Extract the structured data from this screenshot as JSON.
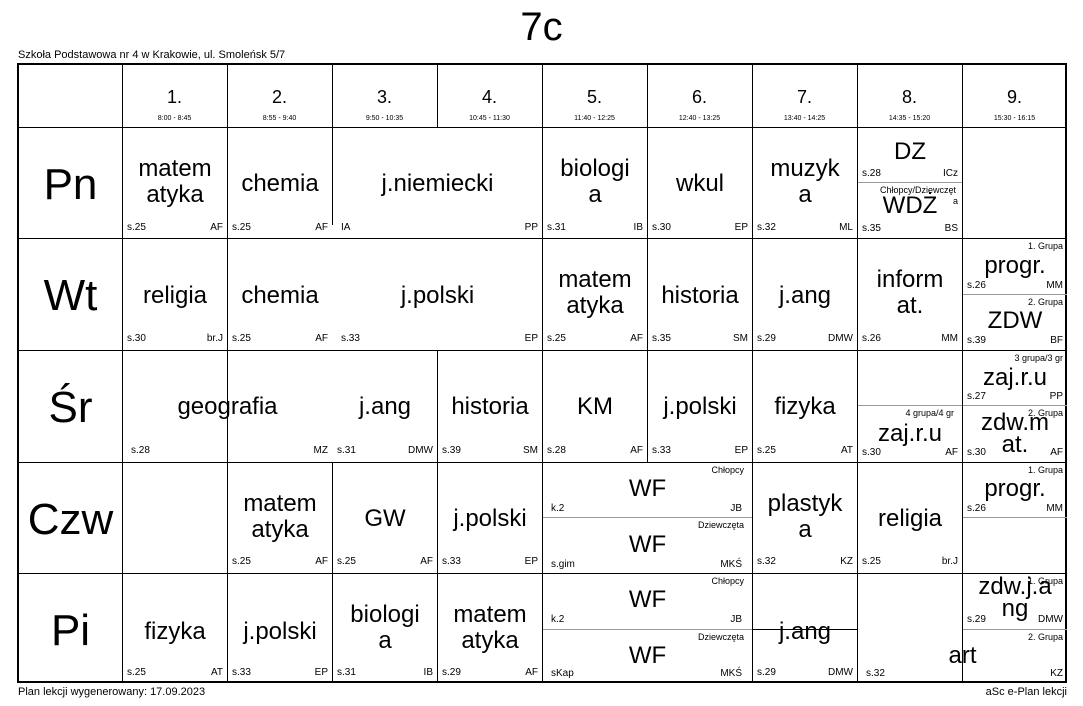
{
  "header": {
    "class_name": "7c",
    "school": "Szkoła Podstawowa nr 4 w Krakowie, ul. Smoleńsk 5/7"
  },
  "footer": {
    "generated": "Plan lekcji wygenerowany: 17.09.2023",
    "software": "aSc e-Plan lekcji"
  },
  "periods": [
    {
      "num": "1.",
      "time": "8:00 - 8:45"
    },
    {
      "num": "2.",
      "time": "8:55 - 9:40"
    },
    {
      "num": "3.",
      "time": "9:50 - 10:35"
    },
    {
      "num": "4.",
      "time": "10:45 - 11:30"
    },
    {
      "num": "5.",
      "time": "11:40 - 12:25"
    },
    {
      "num": "6.",
      "time": "12:40 - 13:25"
    },
    {
      "num": "7.",
      "time": "13:40 - 14:25"
    },
    {
      "num": "8.",
      "time": "14:35 - 15:20"
    },
    {
      "num": "9.",
      "time": "15:30 - 16:15"
    }
  ],
  "days": [
    "Pn",
    "Wt",
    "Śr",
    "Czw",
    "Pi"
  ],
  "lessons": {
    "pn": [
      {
        "subj1": "matem",
        "subj2": "atyka",
        "room": "s.25",
        "teacher": "AF"
      },
      {
        "subj1": "chemia",
        "room": "s.25",
        "teacher": "AF"
      },
      {
        "subj1": "j.niemiecki",
        "room": "IA",
        "teacher": "PP"
      },
      {
        "subj1": "biologi",
        "subj2": "a",
        "room": "s.31",
        "teacher": "IB"
      },
      {
        "subj1": "wkul",
        "room": "s.30",
        "teacher": "EP"
      },
      {
        "subj1": "muzyk",
        "subj2": "a",
        "room": "s.32",
        "teacher": "ML"
      },
      {
        "subj1": "DZ",
        "room": "s.28",
        "teacher": "ICz"
      },
      {
        "group": "Chłopcy/Dziewczęt",
        "group2": "a",
        "subj1": "WDŻ",
        "room": "s.35",
        "teacher": "BS"
      }
    ],
    "wt": [
      {
        "subj1": "religia",
        "room": "s.30",
        "teacher": "br.J"
      },
      {
        "subj1": "chemia",
        "room": "s.25",
        "teacher": "AF"
      },
      {
        "subj1": "j.polski",
        "room": "s.33",
        "teacher": "EP"
      },
      {
        "subj1": "matem",
        "subj2": "atyka",
        "room": "s.25",
        "teacher": "AF"
      },
      {
        "subj1": "historia",
        "room": "s.35",
        "teacher": "SM"
      },
      {
        "subj1": "j.ang",
        "room": "s.29",
        "teacher": "DMW"
      },
      {
        "subj1": "inform",
        "subj2": "at.",
        "room": "s.26",
        "teacher": "MM"
      },
      {
        "group": "1. Grupa",
        "subj1": "progr.",
        "room": "s.26",
        "teacher": "MM"
      },
      {
        "group": "2. Grupa",
        "subj1": "ZDW",
        "room": "s.39",
        "teacher": "BF"
      }
    ],
    "sr": [
      {
        "subj1": "geografia",
        "room": "s.28",
        "teacher": "MZ"
      },
      {
        "subj1": "j.ang",
        "room": "s.31",
        "teacher": "DMW"
      },
      {
        "subj1": "historia",
        "room": "s.39",
        "teacher": "SM"
      },
      {
        "subj1": "KM",
        "room": "s.28",
        "teacher": "AF"
      },
      {
        "subj1": "j.polski",
        "room": "s.33",
        "teacher": "EP"
      },
      {
        "subj1": "fizyka",
        "room": "s.25",
        "teacher": "AT"
      },
      {
        "group": "4 grupa/4 gr",
        "subj1": "zaj.r.u",
        "room": "s.30",
        "teacher": "AF"
      },
      {
        "group": "3 grupa/3 gr",
        "subj1": "zaj.r.u",
        "room": "s.27",
        "teacher": "PP"
      },
      {
        "group": "2. Grupa",
        "subj1": "zdw.m",
        "subj2": "at.",
        "room": "s.30",
        "teacher": "AF"
      }
    ],
    "czw": [
      {
        "subj1": "matem",
        "subj2": "atyka",
        "room": "s.25",
        "teacher": "AF"
      },
      {
        "subj1": "GW",
        "room": "s.25",
        "teacher": "AF"
      },
      {
        "subj1": "j.polski",
        "room": "s.33",
        "teacher": "EP"
      },
      {
        "group": "Chłopcy",
        "subj1": "WF",
        "room": "k.2",
        "teacher": "JB"
      },
      {
        "group": "Dziewczęta",
        "subj1": "WF",
        "room": "s.gim",
        "teacher": "MKŚ"
      },
      {
        "subj1": "plastyk",
        "subj2": "a",
        "room": "s.32",
        "teacher": "KZ"
      },
      {
        "subj1": "religia",
        "room": "s.25",
        "teacher": "br.J"
      },
      {
        "group": "1. Grupa",
        "subj1": "progr.",
        "room": "s.26",
        "teacher": "MM"
      }
    ],
    "pi": [
      {
        "subj1": "fizyka",
        "room": "s.25",
        "teacher": "AT"
      },
      {
        "subj1": "j.polski",
        "room": "s.33",
        "teacher": "EP"
      },
      {
        "subj1": "biologi",
        "subj2": "a",
        "room": "s.31",
        "teacher": "IB"
      },
      {
        "subj1": "matem",
        "subj2": "atyka",
        "room": "s.29",
        "teacher": "AF"
      },
      {
        "group": "Chłopcy",
        "subj1": "WF",
        "room": "k.2",
        "teacher": "JB"
      },
      {
        "group": "Dziewczęta",
        "subj1": "WF",
        "room": "sKap",
        "teacher": "MKŚ"
      },
      {
        "subj1": "j.ang",
        "room": "s.29",
        "teacher": "DMW"
      },
      {
        "group": "1. Grupa",
        "subj1": "zdw.j.a",
        "subj2": "ng",
        "room": "s.29",
        "teacher": "DMW"
      },
      {
        "group": "2. Grupa",
        "subj1": "art",
        "room": "s.32",
        "teacher": "KZ"
      }
    ]
  }
}
